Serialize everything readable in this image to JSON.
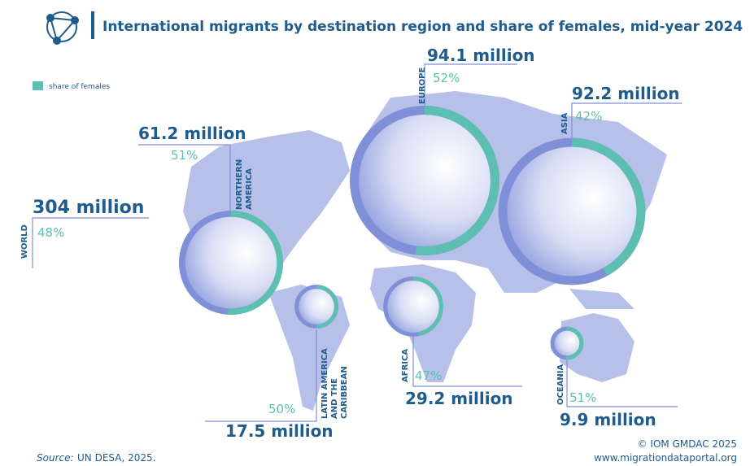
{
  "chart_data": {
    "type": "ring-map",
    "title": "International migrants by destination region and share of females, mid-year 2024",
    "legend": "share of females",
    "share_color": "#5dbfb1",
    "ring_color": "#7f8fd8",
    "world": {
      "name": "WORLD",
      "total_label": "304 million",
      "share_label": "48%"
    },
    "regions": [
      {
        "name": [
          "NORTHERN",
          "AMERICA"
        ],
        "total": 61.2,
        "total_label": "61.2 million",
        "share": 51,
        "share_label": "51%"
      },
      {
        "name": [
          "EUROPE"
        ],
        "total": 94.1,
        "total_label": "94.1 million",
        "share": 52,
        "share_label": "52%"
      },
      {
        "name": [
          "ASIA"
        ],
        "total": 92.2,
        "total_label": "92.2 million",
        "share": 42,
        "share_label": "42%"
      },
      {
        "name": [
          "LATIN AMERICA",
          "AND THE",
          "CARIBBEAN"
        ],
        "total": 17.5,
        "total_label": "17.5 million",
        "share": 50,
        "share_label": "50%"
      },
      {
        "name": [
          "AFRICA"
        ],
        "total": 29.2,
        "total_label": "29.2 million",
        "share": 47,
        "share_label": "47%"
      },
      {
        "name": [
          "OCEANIA"
        ],
        "total": 9.9,
        "total_label": "9.9 million",
        "share": 51,
        "share_label": "51%"
      }
    ],
    "source_label": "Source:",
    "source": "UN DESA, 2025.",
    "credit": "© IOM GMDAC 2025",
    "url": "www.migrationdataportal.org"
  }
}
